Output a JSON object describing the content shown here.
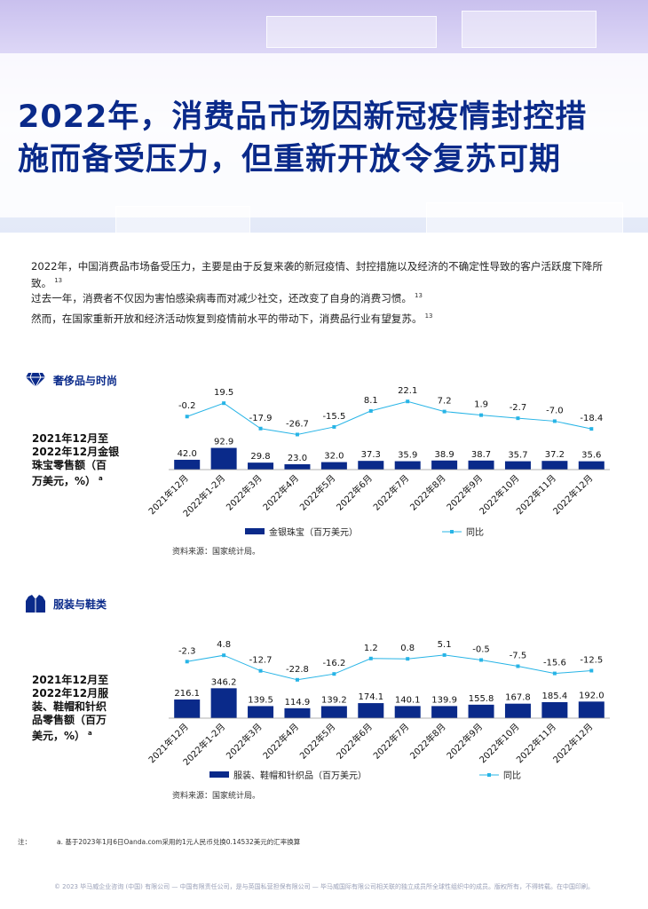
{
  "header": {
    "title_line1": "2022年，消费品市场因新冠疫情封控措",
    "title_line2": "施而备受压力，但重新开放令复苏可期"
  },
  "intro": {
    "p1": "2022年，中国消费品市场备受压力，主要是由于反复来袭的新冠疫情、封控措施以及经济的不确定性导致的客户活跃度下降所致。",
    "p1_ref": "13",
    "p2": "过去一年，消费者不仅因为害怕感染病毒而对减少社交，还改变了自身的消费习惯。",
    "p2_ref": "13",
    "p3": "然而，在国家重新开放和经济活动恢复到疫情前水平的带动下，消费品行业有望复苏。",
    "p3_ref": "13"
  },
  "section1": {
    "icon": "diamond-icon",
    "heading": "奢侈品与时尚",
    "side_label_lines": [
      "2021年12月至",
      "2022年12月金银",
      "珠宝零售额（百",
      "万美元，%）"
    ],
    "side_label_note": "a",
    "source": "资料来源：国家统计局。"
  },
  "section2": {
    "icon": "jacket-icon",
    "heading": "服装与鞋类",
    "side_label_lines": [
      "2021年12月至",
      "2022年12月服",
      "装、鞋帽和针织",
      "品零售额（百万",
      "美元，%）"
    ],
    "side_label_note": "a",
    "source": "资料来源：国家统计局。"
  },
  "chart_data": [
    {
      "type": "bar",
      "categories": [
        "2021年12月",
        "2022年1-2月",
        "2022年3月",
        "2022年4月",
        "2022年5月",
        "2022年6月",
        "2022年7月",
        "2022年8月",
        "2022年9月",
        "2022年10月",
        "2022年11月",
        "2022年12月"
      ],
      "series": [
        {
          "name": "金银珠宝（百万美元）",
          "kind": "bar",
          "color": "#0a2a8a",
          "values": [
            42.0,
            92.9,
            29.8,
            23.0,
            32.0,
            37.3,
            35.9,
            38.9,
            38.7,
            35.7,
            37.2,
            35.6
          ]
        },
        {
          "name": "同比",
          "kind": "line",
          "color": "#27b4e6",
          "values": [
            -0.2,
            19.5,
            -17.9,
            -26.7,
            -15.5,
            8.1,
            22.1,
            7.2,
            1.9,
            -2.7,
            -7.0,
            -18.4
          ]
        }
      ],
      "bar_labels": [
        "42.0",
        "92.9",
        "29.8",
        "23.0",
        "32.0",
        "37.3",
        "35.9",
        "38.9",
        "38.7",
        "35.7",
        "37.2",
        "35.6"
      ],
      "line_labels": [
        "-0.2",
        "19.5",
        "-17.9",
        "-26.7",
        "-15.5",
        "8.1",
        "22.1",
        "7.2",
        "1.9",
        "-2.7",
        "-7.0",
        "-18.4"
      ],
      "bar_max": 95,
      "line_range": [
        -30,
        25
      ],
      "grid": false,
      "legend_position": "bottom"
    },
    {
      "type": "bar",
      "categories": [
        "2021年12月",
        "2022年1-2月",
        "2022年3月",
        "2022年4月",
        "2022年5月",
        "2022年6月",
        "2022年7月",
        "2022年8月",
        "2022年9月",
        "2022年10月",
        "2022年11月",
        "2022年12月"
      ],
      "series": [
        {
          "name": "服装、鞋帽和针织品（百万美元）",
          "kind": "bar",
          "color": "#0a2a8a",
          "values": [
            216.1,
            346.2,
            139.5,
            114.9,
            139.2,
            174.1,
            140.1,
            139.9,
            155.8,
            167.8,
            185.4,
            192.0
          ]
        },
        {
          "name": "同比",
          "kind": "line",
          "color": "#27b4e6",
          "values": [
            -2.3,
            4.8,
            -12.7,
            -22.8,
            -16.2,
            1.2,
            0.8,
            5.1,
            -0.5,
            -7.5,
            -15.6,
            -12.5
          ]
        }
      ],
      "bar_labels": [
        "216.1",
        "346.2",
        "139.5",
        "114.9",
        "139.2",
        "174.1",
        "140.1",
        "139.9",
        "155.8",
        "167.8",
        "185.4",
        "192.0"
      ],
      "line_labels": [
        "-2.3",
        "4.8",
        "-12.7",
        "-22.8",
        "-16.2",
        "1.2",
        "0.8",
        "5.1",
        "-0.5",
        "-7.5",
        "-15.6",
        "-12.5"
      ],
      "bar_max": 360,
      "line_range": [
        -25,
        6
      ],
      "grid": false,
      "legend_position": "bottom"
    }
  ],
  "notes": {
    "label": "注：",
    "a": "a. 基于2023年1月6日Oanda.com采用的1元人民币兑换0.14532美元的汇率换算"
  },
  "footer": {
    "text": "© 2023 毕马威企业咨询 (中国) 有限公司 — 中国有限责任公司，是与英国私营担保有限公司 — 毕马威国际有限公司相关联的独立成员所全球性组织中的成员。版权所有，不得转载。在中国印刷。"
  }
}
